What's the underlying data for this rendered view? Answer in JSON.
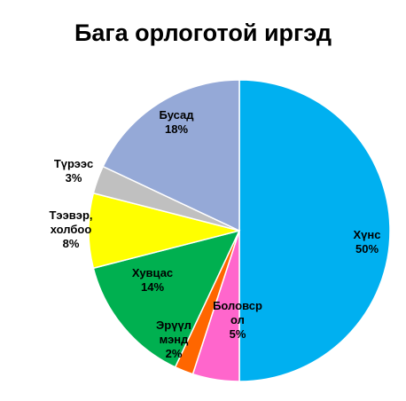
{
  "chart_data": {
    "type": "pie",
    "title": "Бага орлоготой иргэд",
    "start_angle_deg": 0,
    "direction": "clockwise",
    "slices": [
      {
        "label_lines": [
          "Хүнс"
        ],
        "value_text": "50%",
        "value": 50,
        "color": "#00B0F0"
      },
      {
        "label_lines": [
          "Боловср",
          "ол"
        ],
        "value_text": "5%",
        "value": 5,
        "color": "#FF66CC"
      },
      {
        "label_lines": [
          "Эрүүл",
          "мэнд"
        ],
        "value_text": "2%",
        "value": 2,
        "color": "#FF6600"
      },
      {
        "label_lines": [
          "Хувцас"
        ],
        "value_text": "14%",
        "value": 14,
        "color": "#00B050"
      },
      {
        "label_lines": [
          "Тээвэр,",
          "холбоо"
        ],
        "value_text": "8%",
        "value": 8,
        "color": "#FFFF00"
      },
      {
        "label_lines": [
          "Түрээс"
        ],
        "value_text": "3%",
        "value": 3,
        "color": "#C0C0C0"
      },
      {
        "label_lines": [
          "Бусад"
        ],
        "value_text": "18%",
        "value": 18,
        "color": "#95A9D7"
      }
    ]
  }
}
